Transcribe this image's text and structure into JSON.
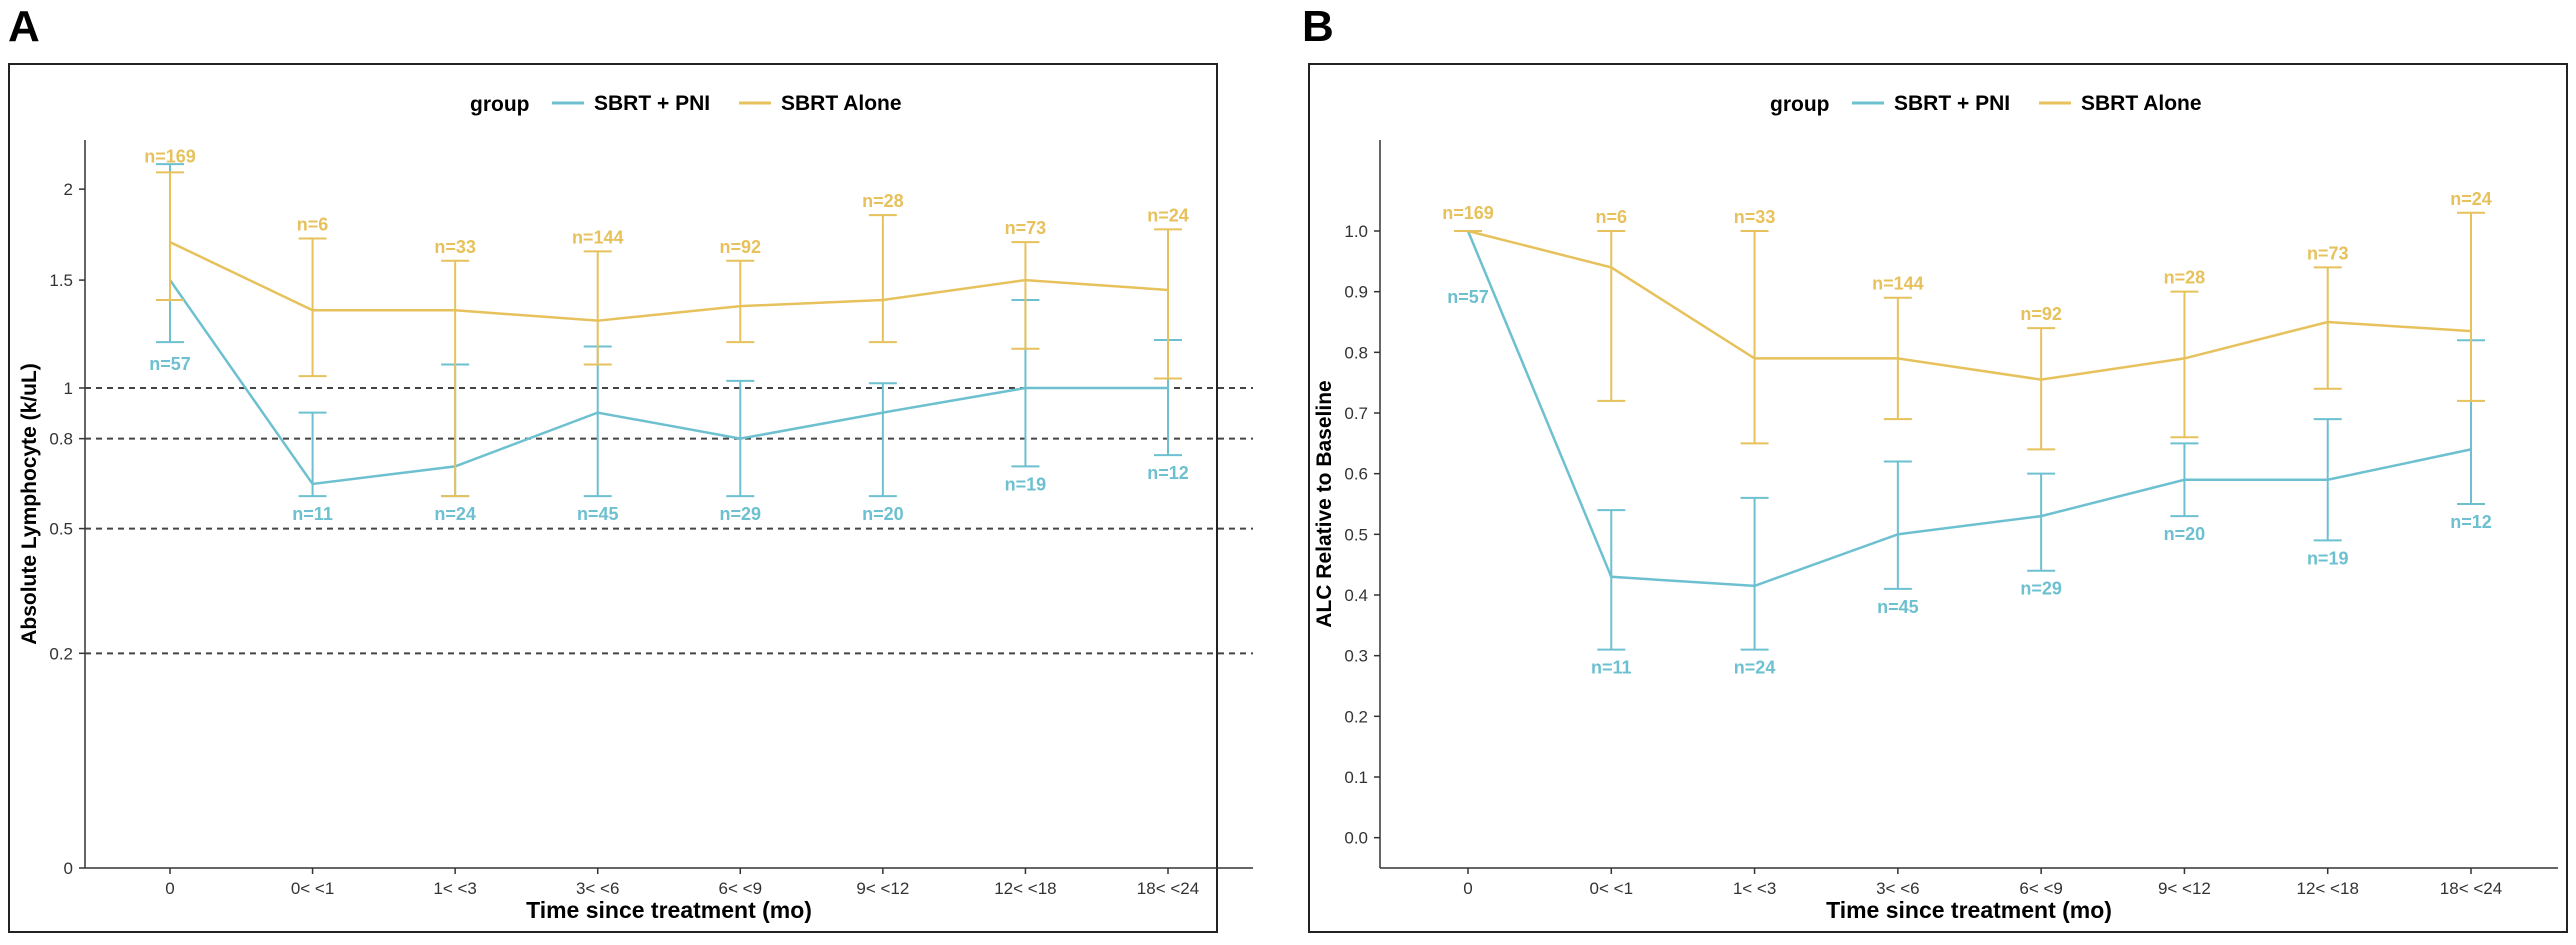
{
  "panels": [
    {
      "letter": "A",
      "chart_data": {
        "type": "line",
        "xlabel": "Time since treatment (mo)",
        "ylabel": "Absolute Lymphocyte (k/uL)",
        "legend_title": "group",
        "legend_position": "top",
        "categories": [
          "0",
          "0< <1",
          "1< <3",
          "3< <6",
          "6< <9",
          "9< <12",
          "12< <18",
          "18< <24"
        ],
        "y_scale": "sqrt",
        "ylim": [
          0,
          2.3
        ],
        "yticks": [
          0,
          0.2,
          0.5,
          0.8,
          1,
          1.5,
          2
        ],
        "ytick_labels": [
          "0",
          "0.2",
          "0.5",
          "0.8",
          "1",
          "1.5",
          "2"
        ],
        "reference_lines": [
          0.2,
          0.5,
          0.8,
          1
        ],
        "series": [
          {
            "name": "SBRT + PNI",
            "color": "#6dc0d0",
            "values": [
              1.5,
              0.64,
              0.7,
              0.9,
              0.8,
              0.9,
              1.0,
              1.0
            ],
            "lower": [
              1.2,
              0.6,
              0.6,
              0.6,
              0.6,
              0.6,
              0.7,
              0.74
            ],
            "upper": [
              2.15,
              0.9,
              1.1,
              1.18,
              1.03,
              1.02,
              1.4,
              1.21
            ],
            "n_labels": [
              "n=57",
              "n=11",
              "n=24",
              "n=45",
              "n=29",
              "n=20",
              "n=19",
              "n=12"
            ]
          },
          {
            "name": "SBRT Alone",
            "color": "#e6c15c",
            "values": [
              1.7,
              1.35,
              1.35,
              1.3,
              1.37,
              1.4,
              1.5,
              1.45
            ],
            "lower": [
              1.4,
              1.05,
              0.6,
              1.1,
              1.2,
              1.2,
              1.17,
              1.04
            ],
            "upper": [
              2.1,
              1.72,
              1.6,
              1.65,
              1.6,
              1.85,
              1.7,
              1.77
            ],
            "n_labels": [
              "n=169",
              "n=6",
              "n=33",
              "n=144",
              "n=92",
              "n=28",
              "n=73",
              "n=24"
            ]
          }
        ]
      }
    },
    {
      "letter": "B",
      "chart_data": {
        "type": "line",
        "xlabel": "Time since treatment (mo)",
        "ylabel": "ALC Relative to Baseline",
        "legend_title": "group",
        "legend_position": "top",
        "categories": [
          "0",
          "0< <1",
          "1< <3",
          "3< <6",
          "6< <9",
          "9< <12",
          "12< <18",
          "18< <24"
        ],
        "y_scale": "linear",
        "ylim": [
          -0.05,
          1.15
        ],
        "yticks": [
          0.0,
          0.1,
          0.2,
          0.3,
          0.4,
          0.5,
          0.6,
          0.7,
          0.8,
          0.9,
          1.0
        ],
        "ytick_labels": [
          "0.0",
          "0.1",
          "0.2",
          "0.3",
          "0.4",
          "0.5",
          "0.6",
          "0.7",
          "0.8",
          "0.9",
          "1.0"
        ],
        "reference_lines": [],
        "series": [
          {
            "name": "SBRT + PNI",
            "color": "#6dc0d0",
            "values": [
              1.0,
              0.43,
              0.415,
              0.5,
              0.53,
              0.59,
              0.59,
              0.64
            ],
            "lower": [
              1.0,
              0.31,
              0.31,
              0.41,
              0.44,
              0.53,
              0.49,
              0.55
            ],
            "upper": [
              1.0,
              0.54,
              0.56,
              0.62,
              0.6,
              0.65,
              0.69,
              0.82
            ],
            "n_labels": [
              "n=57",
              "n=11",
              "n=24",
              "n=45",
              "n=29",
              "n=20",
              "n=19",
              "n=12"
            ]
          },
          {
            "name": "SBRT Alone",
            "color": "#e6c15c",
            "values": [
              1.0,
              0.94,
              0.79,
              0.79,
              0.755,
              0.79,
              0.85,
              0.835
            ],
            "lower": [
              1.0,
              0.72,
              0.65,
              0.69,
              0.64,
              0.66,
              0.74,
              0.72
            ],
            "upper": [
              1.0,
              1.0,
              1.0,
              0.89,
              0.84,
              0.9,
              0.94,
              1.03
            ],
            "n_labels": [
              "n=169",
              "n=6",
              "n=33",
              "n=144",
              "n=92",
              "n=28",
              "n=73",
              "n=24"
            ]
          }
        ]
      }
    }
  ]
}
